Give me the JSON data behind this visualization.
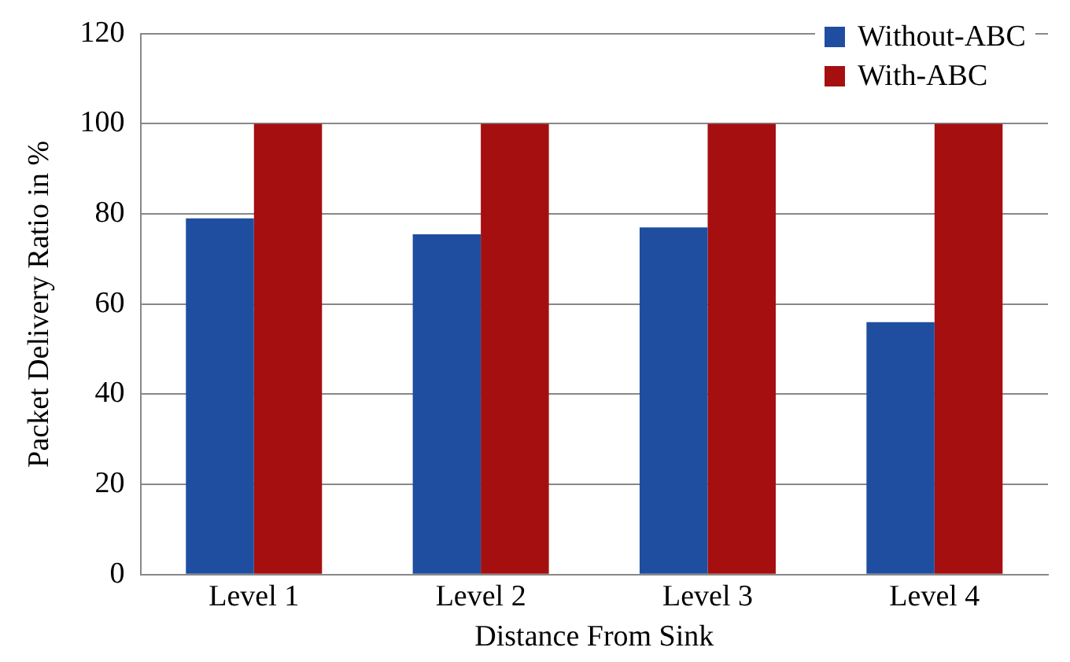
{
  "chart_data": {
    "type": "bar",
    "xlabel": "Distance From Sink",
    "ylabel": "Packet Delivery Ratio in %",
    "categories": [
      "Level 1",
      "Level 2",
      "Level 3",
      "Level 4"
    ],
    "series": [
      {
        "name": "Without-ABC",
        "color": "#1f4ea0",
        "values": [
          79,
          75.5,
          77,
          56
        ]
      },
      {
        "name": "With-ABC",
        "color": "#a50f0f",
        "values": [
          100,
          100,
          100,
          100
        ]
      }
    ],
    "ylim": [
      0,
      120
    ],
    "yticks": [
      0,
      20,
      40,
      60,
      80,
      100,
      120
    ],
    "grid": "y",
    "legend": "top right"
  }
}
